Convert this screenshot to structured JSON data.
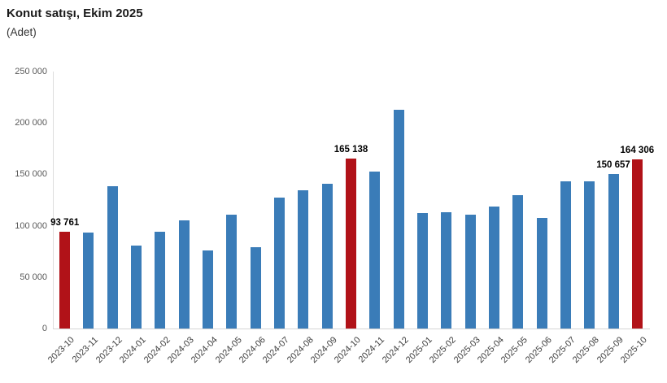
{
  "header": {
    "title": "Konut satışı, Ekim 2025",
    "subtitle": "(Adet)"
  },
  "chart_data": {
    "type": "bar",
    "title": "Konut satışı, Ekim 2025",
    "unit_label": "(Adet)",
    "xlabel": "",
    "ylabel": "",
    "grid": false,
    "legend": false,
    "ylim": [
      0,
      250000
    ],
    "ytick_labels": [
      "0",
      "50 000",
      "100 000",
      "150 000",
      "200 000",
      "250 000"
    ],
    "categories": [
      "2023-10",
      "2023-11",
      "2023-12",
      "2024-01",
      "2024-02",
      "2024-03",
      "2024-04",
      "2024-05",
      "2024-06",
      "2024-07",
      "2024-08",
      "2024-09",
      "2024-10",
      "2024-11",
      "2024-12",
      "2025-01",
      "2025-02",
      "2025-03",
      "2025-04",
      "2025-05",
      "2025-06",
      "2025-07",
      "2025-08",
      "2025-09",
      "2025-10"
    ],
    "values": [
      93761,
      93514,
      138577,
      80308,
      93902,
      105476,
      75569,
      110588,
      79313,
      127088,
      134155,
      140919,
      165138,
      153014,
      212637,
      112173,
      112818,
      110795,
      118359,
      130025,
      107723,
      142858,
      143319,
      150657,
      164306
    ],
    "highlighted_categories": [
      "2023-10",
      "2024-10",
      "2025-10"
    ],
    "value_labels": [
      {
        "category": "2023-10",
        "text": "93 761"
      },
      {
        "category": "2024-10",
        "text": "165 138"
      },
      {
        "category": "2025-09",
        "text": "150 657"
      },
      {
        "category": "2025-10",
        "text": "164 306"
      }
    ],
    "bar_color": "#3a7cb8",
    "highlight_color": "#b11218",
    "axis_line_color": "#d6d6d6"
  }
}
